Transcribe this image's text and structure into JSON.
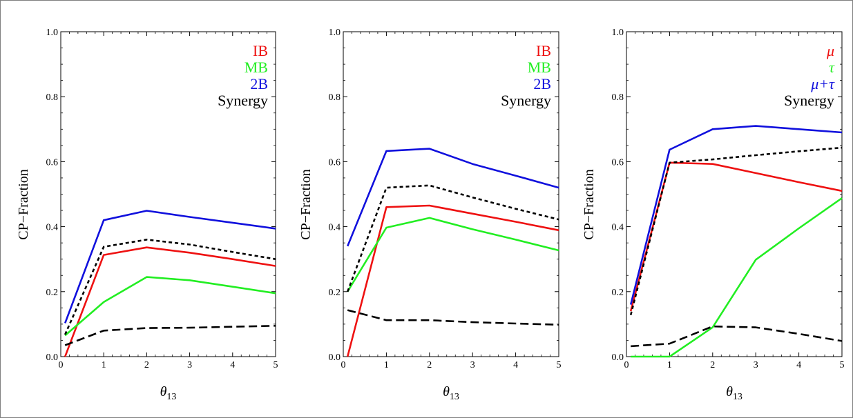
{
  "colors": {
    "red": "#ee1111",
    "green": "#22ee22",
    "blue": "#1010dd",
    "black": "#000000"
  },
  "chart_data": [
    {
      "type": "line",
      "xlabel_main": "θ",
      "xlabel_sub": "13",
      "ylabel": "CP−Fraction",
      "xlim": [
        0,
        5
      ],
      "ylim": [
        0,
        1
      ],
      "xticks": [
        "0",
        "1",
        "2",
        "3",
        "4",
        "5"
      ],
      "yticks": [
        "0.0",
        "0.2",
        "0.4",
        "0.6",
        "0.8",
        "1.0"
      ],
      "legend": [
        "IB",
        "MB",
        "2B",
        "Synergy"
      ],
      "legend_placement": "top-right",
      "series": [
        {
          "name": "IB",
          "color": "red",
          "style": "solid",
          "x": [
            0.1,
            1,
            2,
            3,
            4,
            5
          ],
          "y": [
            0.0,
            0.313,
            0.336,
            0.32,
            0.3,
            0.279
          ]
        },
        {
          "name": "MB",
          "color": "green",
          "style": "solid",
          "x": [
            0.1,
            1,
            2,
            3,
            4,
            5
          ],
          "y": [
            0.065,
            0.168,
            0.245,
            0.235,
            0.215,
            0.195
          ]
        },
        {
          "name": "2B",
          "color": "blue",
          "style": "solid",
          "x": [
            0.1,
            1,
            2,
            3,
            4,
            5
          ],
          "y": [
            0.103,
            0.42,
            0.449,
            0.43,
            0.412,
            0.394
          ]
        },
        {
          "name": "Synergy",
          "color": "black",
          "style": "dotted",
          "x": [
            0.1,
            1,
            2,
            3,
            4,
            5
          ],
          "y": [
            0.068,
            0.338,
            0.36,
            0.345,
            0.322,
            0.3
          ]
        },
        {
          "color": "black",
          "style": "dashed",
          "x": [
            0.1,
            1,
            2,
            3,
            4,
            5
          ],
          "y": [
            0.035,
            0.08,
            0.088,
            0.089,
            0.092,
            0.095
          ]
        }
      ]
    },
    {
      "type": "line",
      "xlabel_main": "θ",
      "xlabel_sub": "13",
      "ylabel": "CP−Fraction",
      "xlim": [
        0,
        5
      ],
      "ylim": [
        0,
        1
      ],
      "xticks": [
        "0",
        "1",
        "2",
        "3",
        "4",
        "5"
      ],
      "yticks": [
        "0.0",
        "0.2",
        "0.4",
        "0.6",
        "0.8",
        "1.0"
      ],
      "legend": [
        "IB",
        "MB",
        "2B",
        "Synergy"
      ],
      "legend_placement": "top-right",
      "series": [
        {
          "name": "IB",
          "color": "red",
          "style": "solid",
          "x": [
            0.1,
            1,
            2,
            3,
            4,
            5
          ],
          "y": [
            0.0,
            0.46,
            0.465,
            0.44,
            0.415,
            0.389
          ]
        },
        {
          "name": "MB",
          "color": "green",
          "style": "solid",
          "x": [
            0.1,
            1,
            2,
            3,
            4,
            5
          ],
          "y": [
            0.2,
            0.397,
            0.427,
            0.392,
            0.36,
            0.327
          ]
        },
        {
          "name": "2B",
          "color": "blue",
          "style": "solid",
          "x": [
            0.1,
            1,
            2,
            3,
            4,
            5
          ],
          "y": [
            0.34,
            0.633,
            0.64,
            0.593,
            0.557,
            0.52
          ]
        },
        {
          "name": "Synergy",
          "color": "black",
          "style": "dotted",
          "x": [
            0.1,
            1,
            2,
            3,
            4,
            5
          ],
          "y": [
            0.2,
            0.52,
            0.527,
            0.49,
            0.455,
            0.422
          ]
        },
        {
          "color": "black",
          "style": "dashed",
          "x": [
            0.1,
            1,
            2,
            3,
            4,
            5
          ],
          "y": [
            0.143,
            0.112,
            0.112,
            0.106,
            0.102,
            0.098
          ]
        }
      ]
    },
    {
      "type": "line",
      "xlabel_main": "θ",
      "xlabel_sub": "13",
      "ylabel": "CP−Fraction",
      "xlim": [
        0,
        5
      ],
      "ylim": [
        0,
        1
      ],
      "xticks": [
        "0",
        "1",
        "2",
        "3",
        "4",
        "5"
      ],
      "yticks": [
        "0.0",
        "0.2",
        "0.4",
        "0.6",
        "0.8",
        "1.0"
      ],
      "legend": [
        "μ",
        "τ",
        "μ+τ",
        "Synergy"
      ],
      "legend_italic": [
        true,
        true,
        true,
        false
      ],
      "legend_placement": "top-right",
      "series": [
        {
          "name": "μ",
          "color": "red",
          "style": "solid",
          "x": [
            0.1,
            1,
            2,
            3,
            4,
            5
          ],
          "y": [
            0.14,
            0.597,
            0.593,
            0.565,
            0.537,
            0.51
          ]
        },
        {
          "name": "τ",
          "color": "green",
          "style": "solid",
          "x": [
            0.1,
            1,
            2,
            3,
            4,
            5
          ],
          "y": [
            0.0,
            0.0,
            0.09,
            0.298,
            0.395,
            0.488
          ]
        },
        {
          "name": "μ+τ",
          "color": "blue",
          "style": "solid",
          "x": [
            0.1,
            1,
            2,
            3,
            4,
            5
          ],
          "y": [
            0.16,
            0.637,
            0.7,
            0.71,
            0.7,
            0.69
          ]
        },
        {
          "name": "Synergy",
          "color": "black",
          "style": "dotted",
          "x": [
            0.1,
            1,
            2,
            3,
            4,
            5
          ],
          "y": [
            0.128,
            0.597,
            0.607,
            0.62,
            0.632,
            0.643
          ]
        },
        {
          "color": "black",
          "style": "dashed",
          "x": [
            0.1,
            1,
            2,
            3,
            4,
            5
          ],
          "y": [
            0.032,
            0.04,
            0.093,
            0.09,
            0.07,
            0.048
          ]
        }
      ]
    }
  ]
}
